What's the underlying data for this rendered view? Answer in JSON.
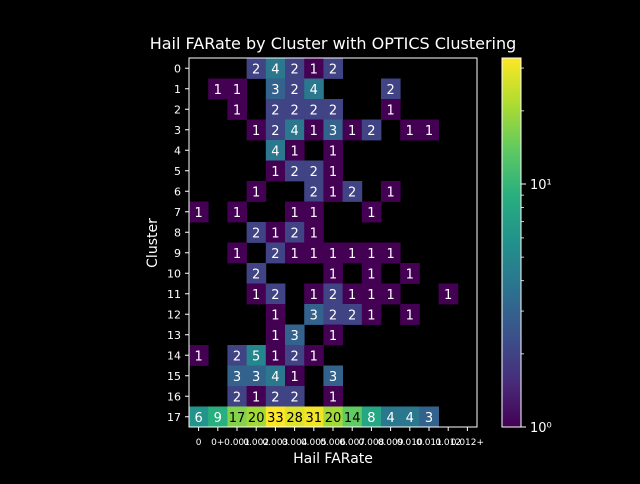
{
  "chart_data": {
    "type": "heatmap",
    "title": "Hail FARate by Cluster with OPTICS Clustering",
    "xlabel": "Hail FARate",
    "ylabel": "Cluster",
    "x_categories": [
      "0",
      "0+",
      "0.001",
      "0.002",
      "0.003",
      "0.004",
      "0.005",
      "0.006",
      "0.007",
      "0.008",
      "0.009",
      "0.010",
      "0.011",
      "0.012",
      "0.012+"
    ],
    "x_tick_labels": [
      "0",
      "0+",
      "0.001",
      "0.002",
      "0.003",
      "0.004",
      "0.005",
      "0.006",
      "0.007",
      "0.008",
      "0.009",
      "0.010",
      "0.011",
      "0.012",
      "0.012+"
    ],
    "y_categories": [
      "0",
      "1",
      "2",
      "3",
      "4",
      "5",
      "6",
      "7",
      "8",
      "9",
      "10",
      "11",
      "12",
      "13",
      "14",
      "15",
      "16",
      "17"
    ],
    "color_scale": "log",
    "colormap": "viridis",
    "colorbar": {
      "min": 1,
      "max": 33,
      "ticks": [
        1,
        10
      ],
      "tick_labels": [
        "10⁰",
        "10¹"
      ]
    },
    "cells": [
      {
        "row": "0",
        "col": 3,
        "value": 2
      },
      {
        "row": "0",
        "col": 4,
        "value": 4
      },
      {
        "row": "0",
        "col": 5,
        "value": 2
      },
      {
        "row": "0",
        "col": 6,
        "value": 1
      },
      {
        "row": "0",
        "col": 7,
        "value": 2
      },
      {
        "row": "1",
        "col": 1,
        "value": 1
      },
      {
        "row": "1",
        "col": 2,
        "value": 1
      },
      {
        "row": "1",
        "col": 4,
        "value": 3
      },
      {
        "row": "1",
        "col": 5,
        "value": 2
      },
      {
        "row": "1",
        "col": 6,
        "value": 4
      },
      {
        "row": "1",
        "col": 10,
        "value": 2
      },
      {
        "row": "2",
        "col": 2,
        "value": 1
      },
      {
        "row": "2",
        "col": 4,
        "value": 2
      },
      {
        "row": "2",
        "col": 5,
        "value": 2
      },
      {
        "row": "2",
        "col": 6,
        "value": 2
      },
      {
        "row": "2",
        "col": 7,
        "value": 2
      },
      {
        "row": "2",
        "col": 10,
        "value": 1
      },
      {
        "row": "3",
        "col": 3,
        "value": 1
      },
      {
        "row": "3",
        "col": 4,
        "value": 2
      },
      {
        "row": "3",
        "col": 5,
        "value": 4
      },
      {
        "row": "3",
        "col": 6,
        "value": 1
      },
      {
        "row": "3",
        "col": 7,
        "value": 3
      },
      {
        "row": "3",
        "col": 8,
        "value": 1
      },
      {
        "row": "3",
        "col": 9,
        "value": 2
      },
      {
        "row": "3",
        "col": 11,
        "value": 1
      },
      {
        "row": "3",
        "col": 12,
        "value": 1
      },
      {
        "row": "4",
        "col": 4,
        "value": 4
      },
      {
        "row": "4",
        "col": 5,
        "value": 1
      },
      {
        "row": "4",
        "col": 7,
        "value": 1
      },
      {
        "row": "5",
        "col": 4,
        "value": 1
      },
      {
        "row": "5",
        "col": 5,
        "value": 2
      },
      {
        "row": "5",
        "col": 6,
        "value": 2
      },
      {
        "row": "5",
        "col": 7,
        "value": 1
      },
      {
        "row": "6",
        "col": 3,
        "value": 1
      },
      {
        "row": "6",
        "col": 6,
        "value": 2
      },
      {
        "row": "6",
        "col": 7,
        "value": 1
      },
      {
        "row": "6",
        "col": 8,
        "value": 2
      },
      {
        "row": "6",
        "col": 10,
        "value": 1
      },
      {
        "row": "7",
        "col": 0,
        "value": 1
      },
      {
        "row": "7",
        "col": 2,
        "value": 1
      },
      {
        "row": "7",
        "col": 5,
        "value": 1
      },
      {
        "row": "7",
        "col": 6,
        "value": 1
      },
      {
        "row": "7",
        "col": 9,
        "value": 1
      },
      {
        "row": "8",
        "col": 3,
        "value": 2
      },
      {
        "row": "8",
        "col": 4,
        "value": 1
      },
      {
        "row": "8",
        "col": 5,
        "value": 2
      },
      {
        "row": "8",
        "col": 6,
        "value": 1
      },
      {
        "row": "9",
        "col": 2,
        "value": 1
      },
      {
        "row": "9",
        "col": 4,
        "value": 2
      },
      {
        "row": "9",
        "col": 5,
        "value": 1
      },
      {
        "row": "9",
        "col": 6,
        "value": 1
      },
      {
        "row": "9",
        "col": 7,
        "value": 1
      },
      {
        "row": "9",
        "col": 8,
        "value": 1
      },
      {
        "row": "9",
        "col": 9,
        "value": 1
      },
      {
        "row": "9",
        "col": 10,
        "value": 1
      },
      {
        "row": "10",
        "col": 3,
        "value": 2
      },
      {
        "row": "10",
        "col": 7,
        "value": 1
      },
      {
        "row": "10",
        "col": 9,
        "value": 1
      },
      {
        "row": "10",
        "col": 11,
        "value": 1
      },
      {
        "row": "11",
        "col": 3,
        "value": 1
      },
      {
        "row": "11",
        "col": 4,
        "value": 2
      },
      {
        "row": "11",
        "col": 6,
        "value": 1
      },
      {
        "row": "11",
        "col": 7,
        "value": 2
      },
      {
        "row": "11",
        "col": 8,
        "value": 1
      },
      {
        "row": "11",
        "col": 9,
        "value": 1
      },
      {
        "row": "11",
        "col": 10,
        "value": 1
      },
      {
        "row": "11",
        "col": 13,
        "value": 1
      },
      {
        "row": "12",
        "col": 4,
        "value": 1
      },
      {
        "row": "12",
        "col": 6,
        "value": 3
      },
      {
        "row": "12",
        "col": 7,
        "value": 2
      },
      {
        "row": "12",
        "col": 8,
        "value": 2
      },
      {
        "row": "12",
        "col": 9,
        "value": 1
      },
      {
        "row": "12",
        "col": 11,
        "value": 1
      },
      {
        "row": "13",
        "col": 4,
        "value": 1
      },
      {
        "row": "13",
        "col": 5,
        "value": 3
      },
      {
        "row": "13",
        "col": 7,
        "value": 1
      },
      {
        "row": "14",
        "col": 0,
        "value": 1
      },
      {
        "row": "14",
        "col": 2,
        "value": 2
      },
      {
        "row": "14",
        "col": 3,
        "value": 5
      },
      {
        "row": "14",
        "col": 4,
        "value": 1
      },
      {
        "row": "14",
        "col": 5,
        "value": 2
      },
      {
        "row": "14",
        "col": 6,
        "value": 1
      },
      {
        "row": "15",
        "col": 2,
        "value": 3
      },
      {
        "row": "15",
        "col": 3,
        "value": 3
      },
      {
        "row": "15",
        "col": 4,
        "value": 4
      },
      {
        "row": "15",
        "col": 5,
        "value": 1
      },
      {
        "row": "15",
        "col": 7,
        "value": 3
      },
      {
        "row": "16",
        "col": 2,
        "value": 2
      },
      {
        "row": "16",
        "col": 3,
        "value": 1
      },
      {
        "row": "16",
        "col": 4,
        "value": 2
      },
      {
        "row": "16",
        "col": 5,
        "value": 2
      },
      {
        "row": "16",
        "col": 7,
        "value": 1
      },
      {
        "row": "17",
        "col": 0,
        "value": 6
      },
      {
        "row": "17",
        "col": 1,
        "value": 9
      },
      {
        "row": "17",
        "col": 2,
        "value": 17
      },
      {
        "row": "17",
        "col": 3,
        "value": 20
      },
      {
        "row": "17",
        "col": 4,
        "value": 33
      },
      {
        "row": "17",
        "col": 5,
        "value": 28
      },
      {
        "row": "17",
        "col": 6,
        "value": 31
      },
      {
        "row": "17",
        "col": 7,
        "value": 20
      },
      {
        "row": "17",
        "col": 8,
        "value": 14
      },
      {
        "row": "17",
        "col": 9,
        "value": 8
      },
      {
        "row": "17",
        "col": 10,
        "value": 4
      },
      {
        "row": "17",
        "col": 11,
        "value": 4
      },
      {
        "row": "17",
        "col": 12,
        "value": 3
      }
    ]
  }
}
